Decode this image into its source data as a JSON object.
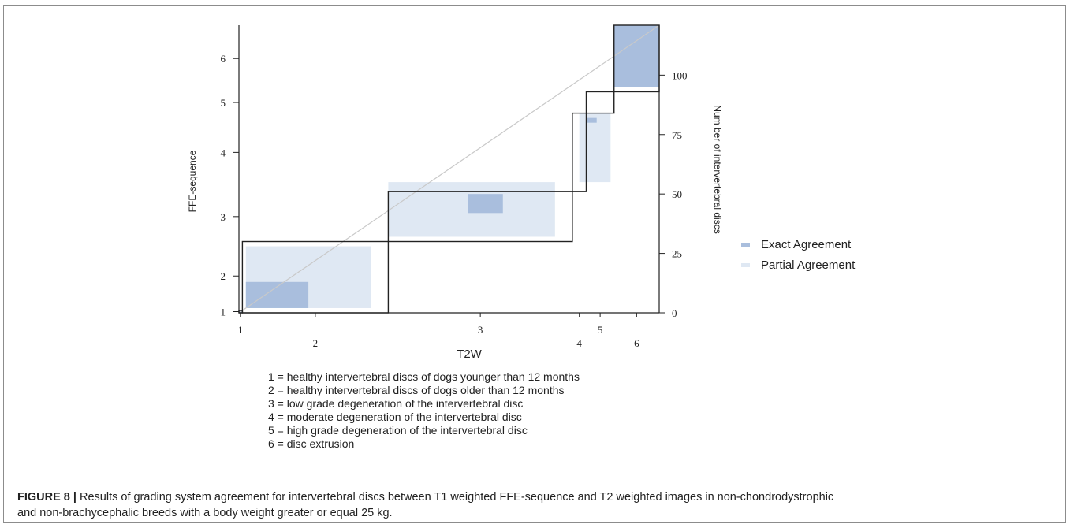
{
  "chart_data": {
    "type": "agreement",
    "xlabel": "T2W",
    "ylabel": "FFE-sequence",
    "y2label": "Number of intervertebral discs",
    "x_categories": [
      "1",
      "2",
      "3",
      "4",
      "5",
      "6"
    ],
    "y_categories": [
      "1",
      "2",
      "3",
      "4",
      "5",
      "6"
    ],
    "y2_ticks": [
      0,
      25,
      50,
      75,
      100
    ],
    "y2lim": [
      0,
      121
    ],
    "total": 121,
    "col_cumulative": [
      0,
      1,
      43,
      96,
      100,
      108,
      121
    ],
    "row_cumulative": [
      0,
      1,
      30,
      30,
      51,
      84,
      93,
      121
    ],
    "exact_cells": [
      {
        "cat": "1",
        "x": [
          0,
          1
        ],
        "y": [
          0,
          1
        ]
      },
      {
        "cat": "2",
        "x": [
          2,
          20
        ],
        "y": [
          2,
          13
        ]
      },
      {
        "cat": "3",
        "x": [
          66,
          76
        ],
        "y": [
          42,
          50
        ]
      },
      {
        "cat": "4",
        "x": [
          100,
          103
        ],
        "y": [
          80,
          82
        ]
      },
      {
        "cat": "6",
        "x": [
          108,
          121
        ],
        "y": [
          95,
          121
        ]
      }
    ],
    "partial_cells": [
      {
        "cat": "2",
        "x": [
          2,
          38
        ],
        "y": [
          2,
          28
        ]
      },
      {
        "cat": "3",
        "x": [
          43,
          91
        ],
        "y": [
          32,
          55
        ]
      },
      {
        "cat": "4",
        "x": [
          98,
          107
        ],
        "y": [
          55,
          84
        ]
      }
    ],
    "series": [
      {
        "name": "Exact Agreement",
        "color": "#a9bedd"
      },
      {
        "name": "Partial Agreement",
        "color": "#dfe8f3"
      }
    ]
  },
  "legend_items": [
    "1 = healthy intervertebral discs of dogs younger than 12 months",
    "2 = healthy intervertebral discs of dogs older than 12 months",
    "3 = low grade degeneration of the intervertebral disc",
    "4 = moderate degeneration of the intervertebral disc",
    "5 = high grade degeneration of the intervertebral disc",
    "6 = disc extrusion"
  ],
  "caption": {
    "label": "FIGURE 8 |",
    "text_line1": " Results of grading system agreement for intervertebral discs between T1 weighted FFE-sequence and T2 weighted images in non-chondrodystrophic",
    "text_line2": "and non-brachycephalic breeds with a body weight greater or equal 25 kg."
  }
}
